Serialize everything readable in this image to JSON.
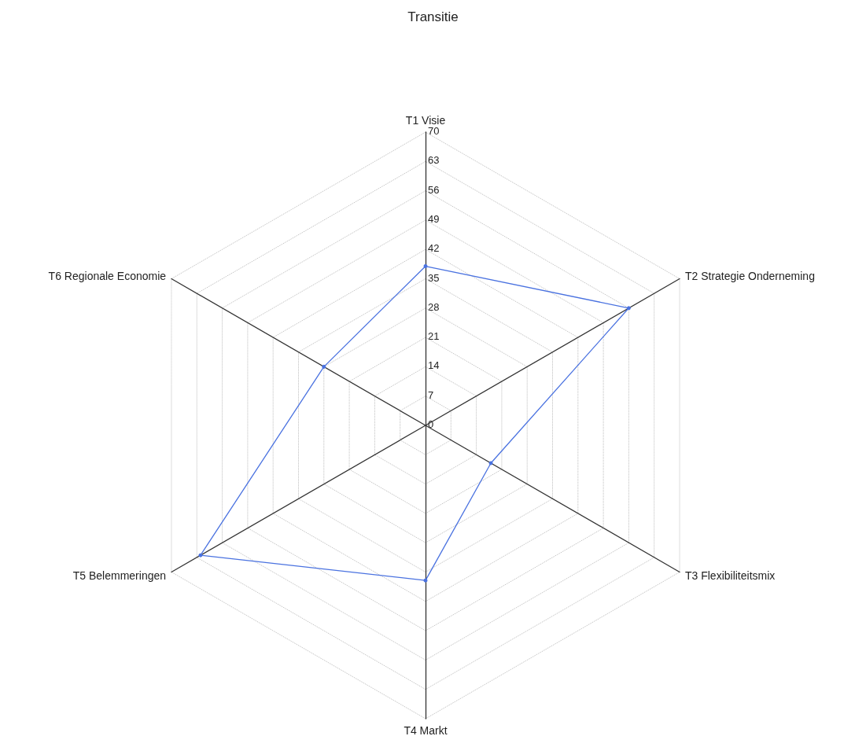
{
  "chart_data": {
    "type": "radar",
    "title": "Transitie",
    "categories": [
      "T1 Visie",
      "T2 Strategie Onderneming",
      "T3 Flexibiliteitsmix",
      "T4 Markt",
      "T5 Belemmeringen",
      "T6 Regionale Economie"
    ],
    "series": [
      {
        "color": "#4a72e0",
        "values": [
          38,
          56,
          18,
          37,
          62,
          28
        ]
      }
    ],
    "ylim": [
      0,
      70
    ],
    "yticks": [
      0,
      7,
      14,
      21,
      28,
      35,
      42,
      49,
      56,
      63,
      70
    ],
    "grid": true,
    "marker": "circle"
  }
}
